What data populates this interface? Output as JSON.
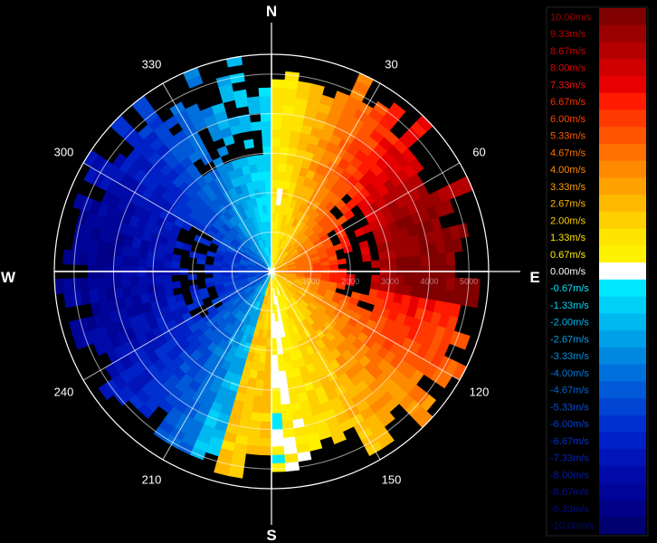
{
  "chart_data": {
    "type": "heatmap",
    "kind": "polar-doppler-velocity",
    "compass": {
      "north": "N",
      "east": "E",
      "south": "S",
      "west": "W",
      "bearings": [
        {
          "deg": 30,
          "label": "30"
        },
        {
          "deg": 60,
          "label": "60"
        },
        {
          "deg": 120,
          "label": "120"
        },
        {
          "deg": 150,
          "label": "150"
        },
        {
          "deg": 210,
          "label": "210"
        },
        {
          "deg": 240,
          "label": "240"
        },
        {
          "deg": 300,
          "label": "300"
        },
        {
          "deg": 330,
          "label": "330"
        }
      ]
    },
    "range_rings": [
      {
        "value": 1000,
        "label": "1000"
      },
      {
        "value": 2000,
        "label": "2000"
      },
      {
        "value": 3000,
        "label": "3000"
      },
      {
        "value": 4000,
        "label": "4000"
      },
      {
        "value": 5000,
        "label": "5000"
      }
    ],
    "range_max": 5500,
    "velocity_range": [
      -10,
      10
    ],
    "legend": [
      {
        "label": "10.00m/s",
        "value": 10.0,
        "color": "#800000",
        "text_color": "#a00000"
      },
      {
        "label": "9.33m/s",
        "value": 9.33,
        "color": "#9a0000",
        "text_color": "#b80000"
      },
      {
        "label": "8.67m/s",
        "value": 8.67,
        "color": "#b40000",
        "text_color": "#d00000"
      },
      {
        "label": "8.00m/s",
        "value": 8.0,
        "color": "#d00000",
        "text_color": "#e00000"
      },
      {
        "label": "7.33m/s",
        "value": 7.33,
        "color": "#e80000",
        "text_color": "#ee1010"
      },
      {
        "label": "6.67m/s",
        "value": 6.67,
        "color": "#ff1a00",
        "text_color": "#ff3000"
      },
      {
        "label": "6.00m/s",
        "value": 6.0,
        "color": "#ff3a00",
        "text_color": "#ff4400"
      },
      {
        "label": "5.33m/s",
        "value": 5.33,
        "color": "#ff5500",
        "text_color": "#ff5a00"
      },
      {
        "label": "4.67m/s",
        "value": 4.67,
        "color": "#ff7000",
        "text_color": "#ff7400"
      },
      {
        "label": "4.00m/s",
        "value": 4.0,
        "color": "#ff8a00",
        "text_color": "#ff8c00"
      },
      {
        "label": "3.33m/s",
        "value": 3.33,
        "color": "#ffa200",
        "text_color": "#ffa200"
      },
      {
        "label": "2.67m/s",
        "value": 2.67,
        "color": "#ffba00",
        "text_color": "#ffba00"
      },
      {
        "label": "2.00m/s",
        "value": 2.0,
        "color": "#ffd000",
        "text_color": "#ffd000"
      },
      {
        "label": "1.33m/s",
        "value": 1.33,
        "color": "#ffe400",
        "text_color": "#ffe400"
      },
      {
        "label": "0.67m/s",
        "value": 0.67,
        "color": "#fff200",
        "text_color": "#fff200"
      },
      {
        "label": "0.00m/s",
        "value": 0.0,
        "color": "#ffffff",
        "text_color": "#ffffff"
      },
      {
        "label": "-0.67m/s",
        "value": -0.67,
        "color": "#00e8ff",
        "text_color": "#00e8ff"
      },
      {
        "label": "-1.33m/s",
        "value": -1.33,
        "color": "#00d0f8",
        "text_color": "#00d0f8"
      },
      {
        "label": "-2.00m/s",
        "value": -2.0,
        "color": "#00b8f0",
        "text_color": "#00b8f0"
      },
      {
        "label": "-2.67m/s",
        "value": -2.67,
        "color": "#00a0e8",
        "text_color": "#00a0e8"
      },
      {
        "label": "-3.33m/s",
        "value": -3.33,
        "color": "#0088e0",
        "text_color": "#0090e0"
      },
      {
        "label": "-4.00m/s",
        "value": -4.0,
        "color": "#0070dc",
        "text_color": "#0078dc"
      },
      {
        "label": "-4.67m/s",
        "value": -4.67,
        "color": "#005ad8",
        "text_color": "#0064d8"
      },
      {
        "label": "-5.33m/s",
        "value": -5.33,
        "color": "#0044d4",
        "text_color": "#0050d4"
      },
      {
        "label": "-6.00m/s",
        "value": -6.0,
        "color": "#0030d0",
        "text_color": "#0040d0"
      },
      {
        "label": "-6.67m/s",
        "value": -6.67,
        "color": "#0020c8",
        "text_color": "#0030c8"
      },
      {
        "label": "-7.33m/s",
        "value": -7.33,
        "color": "#0014b8",
        "text_color": "#0024b8"
      },
      {
        "label": "-8.00m/s",
        "value": -8.0,
        "color": "#000aa8",
        "text_color": "#001aa8"
      },
      {
        "label": "-8.67m/s",
        "value": -8.67,
        "color": "#000498",
        "text_color": "#001098"
      },
      {
        "label": "-9.33m/s",
        "value": -9.33,
        "color": "#000088",
        "text_color": "#000c88"
      },
      {
        "label": "-10.00m/s",
        "value": -10.0,
        "color": "#000070",
        "text_color": "#000a78"
      }
    ]
  }
}
